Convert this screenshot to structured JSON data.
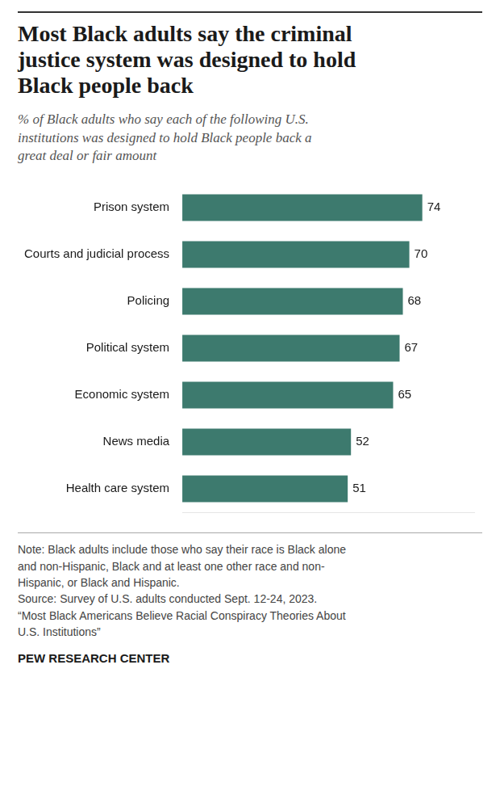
{
  "chart_data": {
    "type": "bar",
    "orientation": "horizontal",
    "title": "Most Black adults say the criminal\njustice system was designed to hold\nBlack people back",
    "subtitle": "% of Black adults who say each of the following U.S.\ninstitutions was designed to hold Black people back a\ngreat deal or fair amount",
    "annotations": [
      "Note: Black adults include those who say their race is Black alone\nand non-Hispanic, Black and at least one other race and non-\nHispanic, or Black and Hispanic.\nSource: Survey of U.S. adults conducted Sept. 12-24, 2023.\n“Most Black Americans Believe Racial Conspiracy Theories About\nU.S. Institutions”",
      "PEW RESEARCH CENTER"
    ],
    "categories": [
      "Prison system",
      "Courts and judicial process",
      "Policing",
      "Political system",
      "Economic system",
      "News media",
      "Health care system"
    ],
    "values": [
      74,
      70,
      68,
      67,
      65,
      52,
      51
    ],
    "color": "#3d7a6e",
    "xlim": [
      0,
      90
    ],
    "grid": false,
    "data_labels": true,
    "tick_labels": "y"
  }
}
